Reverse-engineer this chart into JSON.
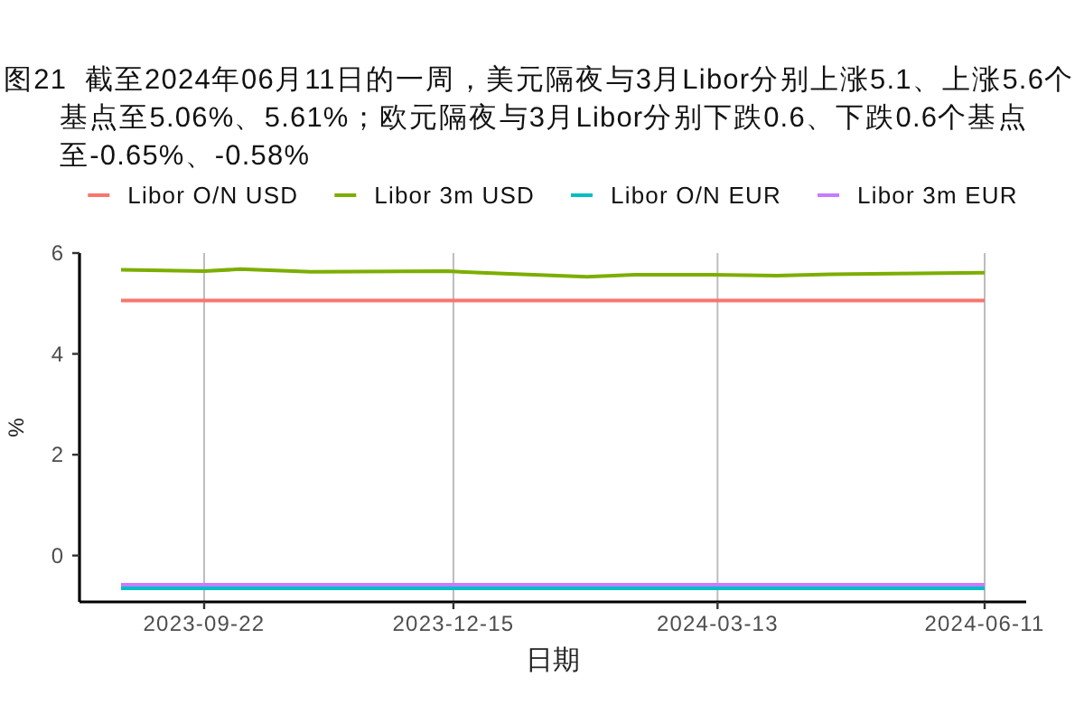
{
  "chart_data": {
    "type": "line",
    "title": "图21  截至2024年06月11日的一周，美元隔夜与3月Libor分别上涨5.1、上涨5.6个基点至5.06%、5.61%；欧元隔夜与3月Libor分别下跌0.6、下跌0.6个基点至-0.65%、-0.58%",
    "xlabel": "日期",
    "ylabel": "%",
    "xlim": [
      "2023-08-11",
      "2024-06-25"
    ],
    "xticks": [
      "2023-09-22",
      "2023-12-15",
      "2024-03-13",
      "2024-06-11"
    ],
    "ylim": [
      -0.92,
      6
    ],
    "yticks": [
      0,
      2,
      4,
      6
    ],
    "grid": "x",
    "legend": "top",
    "series": [
      {
        "name": "Libor O/N USD",
        "color": "#f8766d",
        "x": [
          "2023-08-25",
          "2024-06-11"
        ],
        "values": [
          5.06,
          5.06
        ]
      },
      {
        "name": "Libor 3m USD",
        "color": "#7cae00",
        "x": [
          "2023-08-25",
          "2023-09-22",
          "2023-10-04",
          "2023-10-28",
          "2023-12-13",
          "2024-01-01",
          "2024-01-29",
          "2024-02-14",
          "2024-03-11",
          "2024-04-02",
          "2024-04-20",
          "2024-05-11",
          "2024-06-11"
        ],
        "values": [
          5.67,
          5.64,
          5.68,
          5.63,
          5.64,
          5.59,
          5.53,
          5.57,
          5.57,
          5.55,
          5.58,
          5.59,
          5.61
        ]
      },
      {
        "name": "Libor O/N EUR",
        "color": "#00bfc4",
        "x": [
          "2023-08-25",
          "2024-06-11"
        ],
        "values": [
          -0.65,
          -0.65
        ]
      },
      {
        "name": "Libor 3m EUR",
        "color": "#c77cff",
        "x": [
          "2023-08-25",
          "2024-06-11"
        ],
        "values": [
          -0.58,
          -0.58
        ]
      }
    ]
  }
}
